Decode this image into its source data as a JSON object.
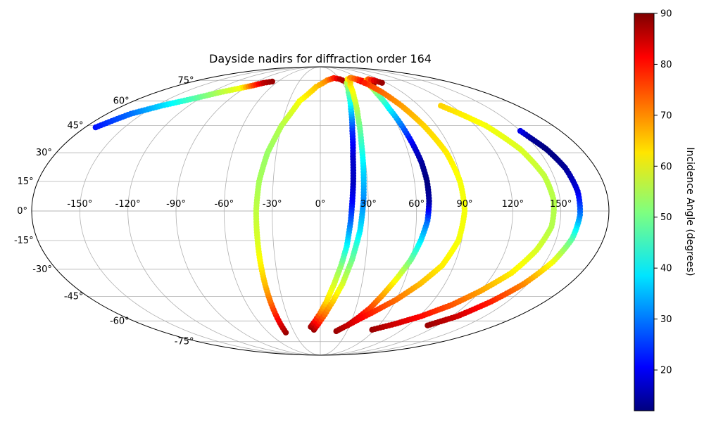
{
  "chart_data": {
    "type": "scatter",
    "projection": "mollweide",
    "title": "Dayside nadirs for diffraction order 164",
    "xlabel": "",
    "ylabel": "",
    "lon_ticks": [
      "-150°",
      "-120°",
      "-90°",
      "-60°",
      "-30°",
      "0°",
      "30°",
      "60°",
      "90°",
      "120°",
      "150°"
    ],
    "lon_tick_values": [
      -150,
      -120,
      -90,
      -60,
      -30,
      0,
      30,
      60,
      90,
      120,
      150
    ],
    "lat_ticks": [
      "75°",
      "60°",
      "45°",
      "30°",
      "15°",
      "0°",
      "-15°",
      "-30°",
      "-45°",
      "-60°",
      "-75°"
    ],
    "lat_tick_values": [
      75,
      60,
      45,
      30,
      15,
      0,
      -15,
      -30,
      -45,
      -60,
      -75
    ],
    "xlim": [
      -180,
      180
    ],
    "ylim": [
      -90,
      90
    ],
    "grid": true,
    "colormap": "jet",
    "colorbar": {
      "label": "Incidence Angle (degrees)",
      "range": [
        12,
        90
      ],
      "ticks": [
        "20",
        "30",
        "40",
        "50",
        "60",
        "70",
        "80",
        "90"
      ],
      "tick_values": [
        20,
        30,
        40,
        50,
        60,
        70,
        80,
        90
      ],
      "placement": "right"
    },
    "series": [
      {
        "points": [
          [
            -172,
            44,
            23
          ],
          [
            -160,
            52,
            30
          ],
          [
            -145,
            57,
            38
          ],
          [
            -125,
            62,
            48
          ],
          [
            -110,
            66,
            55
          ],
          [
            -95,
            69,
            60
          ],
          [
            -85,
            71,
            75
          ],
          [
            -77,
            73,
            85
          ],
          [
            -68,
            74,
            88
          ]
        ]
      },
      {
        "points": [
          [
            -40,
            -68,
            88
          ],
          [
            -40,
            -58,
            80
          ],
          [
            -40,
            -48,
            72
          ],
          [
            -40,
            -38,
            66
          ],
          [
            -40,
            -28,
            62
          ],
          [
            -40,
            -15,
            58
          ],
          [
            -40,
            0,
            56
          ],
          [
            -39,
            15,
            54
          ],
          [
            -36,
            30,
            53
          ],
          [
            -30,
            45,
            55
          ],
          [
            -20,
            60,
            60
          ],
          [
            -5,
            70,
            65
          ],
          [
            10,
            75,
            70
          ],
          [
            22,
            77,
            78
          ],
          [
            30,
            76,
            85
          ],
          [
            38,
            73,
            88
          ]
        ]
      },
      {
        "points": [
          [
            -10,
            -64,
            88
          ],
          [
            -5,
            -60,
            80
          ],
          [
            0,
            -55,
            72
          ],
          [
            5,
            -48,
            64
          ],
          [
            10,
            -38,
            58
          ],
          [
            14,
            -28,
            52
          ],
          [
            17,
            -18,
            42
          ],
          [
            19,
            -5,
            30
          ],
          [
            20,
            5,
            22
          ],
          [
            21,
            15,
            17
          ],
          [
            22,
            28,
            18
          ],
          [
            24,
            42,
            25
          ],
          [
            27,
            55,
            38
          ],
          [
            31,
            66,
            48
          ],
          [
            36,
            73,
            55
          ],
          [
            42,
            76,
            62
          ],
          [
            48,
            77,
            70
          ],
          [
            54,
            76,
            78
          ],
          [
            60,
            73,
            85
          ]
        ]
      },
      {
        "points": [
          [
            -7,
            -66,
            88
          ],
          [
            -2,
            -62,
            80
          ],
          [
            4,
            -56,
            72
          ],
          [
            10,
            -48,
            65
          ],
          [
            16,
            -38,
            58
          ],
          [
            21,
            -25,
            50
          ],
          [
            25,
            -10,
            40
          ],
          [
            27,
            5,
            32
          ],
          [
            28,
            20,
            38
          ],
          [
            29,
            35,
            45
          ],
          [
            31,
            50,
            52
          ],
          [
            34,
            62,
            58
          ],
          [
            38,
            71,
            62
          ],
          [
            44,
            75,
            65
          ],
          [
            50,
            77,
            70
          ],
          [
            57,
            76,
            75
          ],
          [
            63,
            74,
            82
          ],
          [
            70,
            72,
            88
          ]
        ]
      },
      {
        "points": [
          [
            28,
            -63,
            88
          ],
          [
            35,
            -58,
            82
          ],
          [
            42,
            -52,
            76
          ],
          [
            48,
            -44,
            68
          ],
          [
            54,
            -35,
            60
          ],
          [
            60,
            -25,
            50
          ],
          [
            64,
            -15,
            40
          ],
          [
            67,
            -5,
            30
          ],
          [
            68,
            5,
            15
          ],
          [
            68,
            15,
            12
          ],
          [
            67,
            25,
            14
          ],
          [
            65,
            35,
            20
          ],
          [
            63,
            45,
            30
          ],
          [
            61,
            55,
            40
          ],
          [
            61,
            65,
            50
          ],
          [
            63,
            72,
            58
          ],
          [
            68,
            75,
            66
          ],
          [
            74,
            76,
            74
          ],
          [
            79,
            75,
            82
          ],
          [
            84,
            73,
            88
          ]
        ]
      },
      {
        "points": [
          [
            18,
            -67,
            88
          ],
          [
            30,
            -62,
            84
          ],
          [
            45,
            -55,
            78
          ],
          [
            60,
            -47,
            72
          ],
          [
            72,
            -38,
            66
          ],
          [
            82,
            -28,
            62
          ],
          [
            88,
            -15,
            60
          ],
          [
            90,
            0,
            60
          ],
          [
            89,
            15,
            60
          ],
          [
            86,
            30,
            62
          ],
          [
            80,
            45,
            64
          ],
          [
            74,
            57,
            68
          ],
          [
            68,
            66,
            72
          ],
          [
            63,
            71,
            75
          ],
          [
            60,
            73,
            78
          ]
        ]
      },
      {
        "points": [
          [
            57,
            -66,
            88
          ],
          [
            75,
            -62,
            84
          ],
          [
            92,
            -57,
            80
          ],
          [
            108,
            -50,
            74
          ],
          [
            120,
            -42,
            68
          ],
          [
            132,
            -32,
            62
          ],
          [
            140,
            -20,
            58
          ],
          [
            145,
            -8,
            55
          ],
          [
            146,
            5,
            55
          ],
          [
            144,
            18,
            56
          ],
          [
            138,
            32,
            58
          ],
          [
            128,
            45,
            60
          ],
          [
            118,
            52,
            62
          ],
          [
            110,
            57,
            64
          ]
        ]
      },
      {
        "points": [
          [
            110,
            -63,
            88
          ],
          [
            125,
            -57,
            84
          ],
          [
            137,
            -48,
            78
          ],
          [
            147,
            -38,
            70
          ],
          [
            155,
            -26,
            60
          ],
          [
            160,
            -14,
            48
          ],
          [
            162,
            -2,
            32
          ],
          [
            162,
            10,
            20
          ],
          [
            160,
            22,
            14
          ],
          [
            156,
            32,
            12
          ],
          [
            152,
            38,
            14
          ],
          [
            150,
            42,
            20
          ]
        ]
      }
    ]
  }
}
